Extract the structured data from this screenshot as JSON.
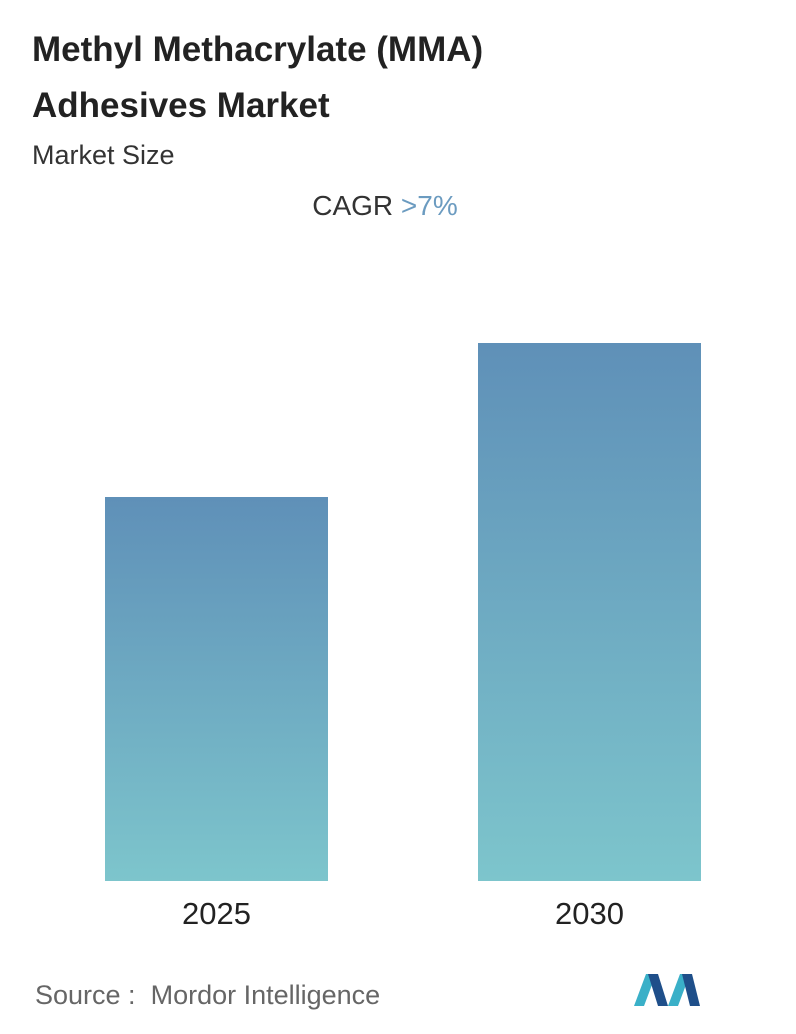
{
  "chart_data": {
    "type": "bar",
    "title": "Methyl Methacrylate (MMA) Adhesives Market",
    "subtitle": "Market Size",
    "cagr_label": "CAGR",
    "cagr_value": ">7%",
    "categories": [
      "2025",
      "2030"
    ],
    "values": [
      100,
      140
    ],
    "colors": [
      "#5f90b8",
      "#7dc5cc"
    ],
    "source_label": "Source :",
    "source": "Mordor Intelligence"
  }
}
